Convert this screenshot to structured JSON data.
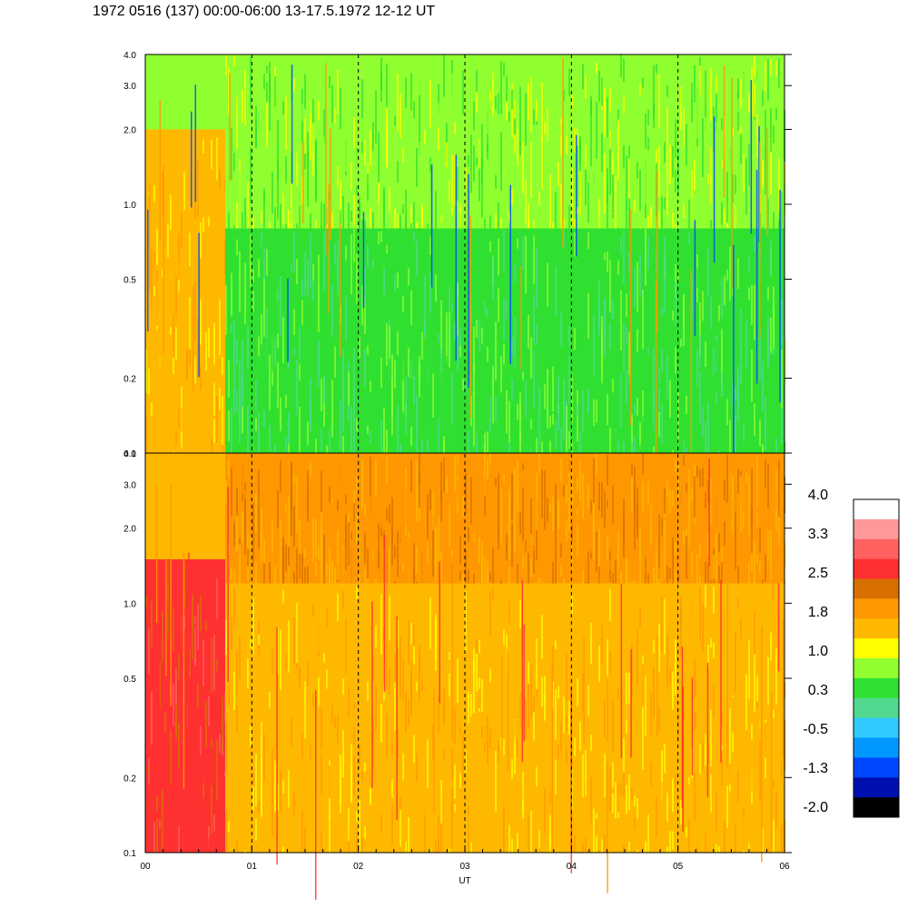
{
  "header": {
    "title": "1972 0516 (137) 00:00-06:00 13-17.5.1972  12-12 UT"
  },
  "chart_data": {
    "type": "heatmap",
    "title": "1972 0516 (137) 00:00-06:00 13-17.5.1972  12-12 UT",
    "xlabel": "UT",
    "x_ticks": [
      "00",
      "01",
      "02",
      "03",
      "04",
      "05",
      "06"
    ],
    "xlim": [
      0,
      6
    ],
    "y_scale": "log",
    "panels": [
      {
        "name": "upper",
        "ylim": [
          0.1,
          4.0
        ],
        "y_ticks": [
          0.1,
          0.2,
          0.5,
          1.0,
          2.0,
          3.0,
          4.0
        ],
        "y_tick_labels": [
          "0.1",
          "0.2",
          "0.5",
          "1.0",
          "2.0",
          "3.0",
          "4.0"
        ],
        "dominant_level": "0.3 to 1.0",
        "region_levels": [
          {
            "x": [
              0.0,
              0.75
            ],
            "y": [
              0.1,
              2.0
            ],
            "level": "1.0 to 1.8"
          },
          {
            "x": [
              0.75,
              6.0
            ],
            "y": [
              0.1,
              0.8
            ],
            "level": "-0.5 to 0.3"
          },
          {
            "x": [
              0.75,
              6.0
            ],
            "y": [
              0.8,
              4.0
            ],
            "level": "0.3 to 1.0"
          }
        ]
      },
      {
        "name": "lower",
        "ylim": [
          0.1,
          4.0
        ],
        "y_ticks": [
          0.1,
          0.2,
          0.5,
          1.0,
          2.0,
          3.0,
          4.0
        ],
        "y_tick_labels": [
          "0.1",
          "0.2",
          "0.5",
          "1.0",
          "2.0",
          "3.0",
          "4.0"
        ],
        "dominant_level": "1.0 to 1.8",
        "region_levels": [
          {
            "x": [
              0.0,
              0.75
            ],
            "y": [
              0.1,
              1.5
            ],
            "level": "2.5 to 3.3"
          },
          {
            "x": [
              0.75,
              6.0
            ],
            "y": [
              1.2,
              4.0
            ],
            "level": "1.8 to 2.5"
          },
          {
            "x": [
              0.75,
              6.0
            ],
            "y": [
              0.1,
              1.2
            ],
            "level": "1.0 to 1.8"
          }
        ]
      }
    ],
    "dashed_gridlines_x": [
      1,
      2,
      3,
      4,
      5
    ],
    "colorbar": {
      "labels": [
        "4.0",
        "3.3",
        "2.5",
        "1.8",
        "1.0",
        "0.3",
        "-0.5",
        "-1.3",
        "-2.0"
      ],
      "colors": [
        "#ffffff",
        "#ff9898",
        "#ff6060",
        "#ff3030",
        "#d87000",
        "#ff9800",
        "#ffb800",
        "#ffff00",
        "#90ff30",
        "#30e030",
        "#50d890",
        "#30c8ff",
        "#0098ff",
        "#0048ff",
        "#0010b0",
        "#000000"
      ]
    }
  }
}
